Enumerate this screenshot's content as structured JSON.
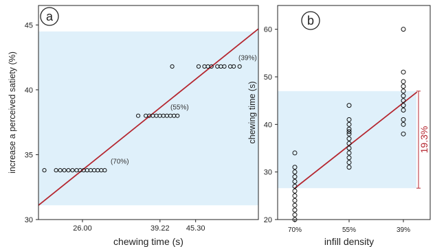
{
  "colors": {
    "band": "#dff0fa",
    "fit_line": "#b5262f",
    "annotation": "#b5262f",
    "points": "#111111",
    "frame": "#222222",
    "text": "#222222"
  },
  "chart_data": [
    {
      "type": "scatter",
      "panel_label": "a",
      "xlabel": "chewing time (s)",
      "ylabel": "increase a perceived satiety (%)",
      "xlim": [
        18.5,
        56.0
      ],
      "ylim": [
        30,
        46.5
      ],
      "xticks": [
        26.0,
        39.22,
        45.3
      ],
      "xtick_labels": [
        "26.00",
        "39.22",
        "45.30"
      ],
      "yticks": [
        30,
        35,
        40,
        45
      ],
      "ytick_labels": [
        "30",
        "35",
        "40",
        "45"
      ],
      "band": {
        "y0": 31.1,
        "y1": 44.5
      },
      "fit_line": {
        "x0": 18.5,
        "y0": 31.1,
        "x1": 56.0,
        "y1": 44.7
      },
      "point_labels": [
        {
          "text": "(70%)",
          "x": 30.8,
          "y": 34.3
        },
        {
          "text": "(55%)",
          "x": 41.0,
          "y": 38.5
        },
        {
          "text": "(39%)",
          "x": 52.6,
          "y": 42.3
        }
      ],
      "series": [
        {
          "values": [
            [
              19.5,
              33.8
            ],
            [
              21.5,
              33.8
            ],
            [
              22.2,
              33.8
            ],
            [
              22.9,
              33.8
            ],
            [
              23.6,
              33.8
            ],
            [
              24.3,
              33.8
            ],
            [
              25.0,
              33.8
            ],
            [
              25.6,
              33.8
            ],
            [
              26.2,
              33.8
            ],
            [
              26.8,
              33.8
            ],
            [
              27.4,
              33.8
            ],
            [
              28.0,
              33.8
            ],
            [
              28.6,
              33.8
            ],
            [
              29.2,
              33.8
            ],
            [
              29.8,
              33.8
            ],
            [
              35.5,
              38.0
            ],
            [
              36.8,
              38.0
            ],
            [
              37.4,
              38.0
            ],
            [
              38.0,
              38.0
            ],
            [
              38.6,
              38.0
            ],
            [
              39.2,
              38.0
            ],
            [
              39.8,
              38.0
            ],
            [
              40.4,
              38.0
            ],
            [
              41.0,
              38.0
            ],
            [
              41.6,
              38.0
            ],
            [
              42.2,
              38.0
            ],
            [
              41.3,
              41.8
            ],
            [
              45.8,
              41.8
            ],
            [
              46.8,
              41.8
            ],
            [
              47.4,
              41.8
            ],
            [
              48.0,
              41.8
            ],
            [
              49.0,
              41.8
            ],
            [
              49.6,
              41.8
            ],
            [
              50.2,
              41.8
            ],
            [
              51.2,
              41.8
            ],
            [
              51.8,
              41.8
            ],
            [
              52.8,
              41.8
            ]
          ]
        }
      ]
    },
    {
      "type": "scatter",
      "panel_label": "b",
      "xlabel": "infill density",
      "ylabel": "chewing time (s)",
      "categories": [
        "70%",
        "55%",
        "39%"
      ],
      "ylim": [
        20,
        65
      ],
      "yticks": [
        20,
        30,
        40,
        50,
        60
      ],
      "ytick_labels": [
        "20",
        "30",
        "40",
        "50",
        "60"
      ],
      "band": {
        "y0": 26.6,
        "y1": 47.0
      },
      "fit_line": {
        "x0": 0,
        "y0": 26.6,
        "x1": 2.25,
        "y1": 46.8
      },
      "bracket_label": "19.3%",
      "series": [
        {
          "category": "70%",
          "values": [
            20,
            21,
            22,
            23,
            24,
            25,
            26,
            27,
            28,
            29,
            30,
            31,
            34
          ]
        },
        {
          "category": "55%",
          "values": [
            31,
            32,
            33,
            34,
            35,
            36,
            37,
            38,
            38.5,
            39,
            40,
            41,
            44
          ]
        },
        {
          "category": "39%",
          "values": [
            38,
            40,
            41,
            43,
            44,
            45,
            46,
            47,
            48,
            49,
            51,
            60
          ]
        }
      ]
    }
  ]
}
